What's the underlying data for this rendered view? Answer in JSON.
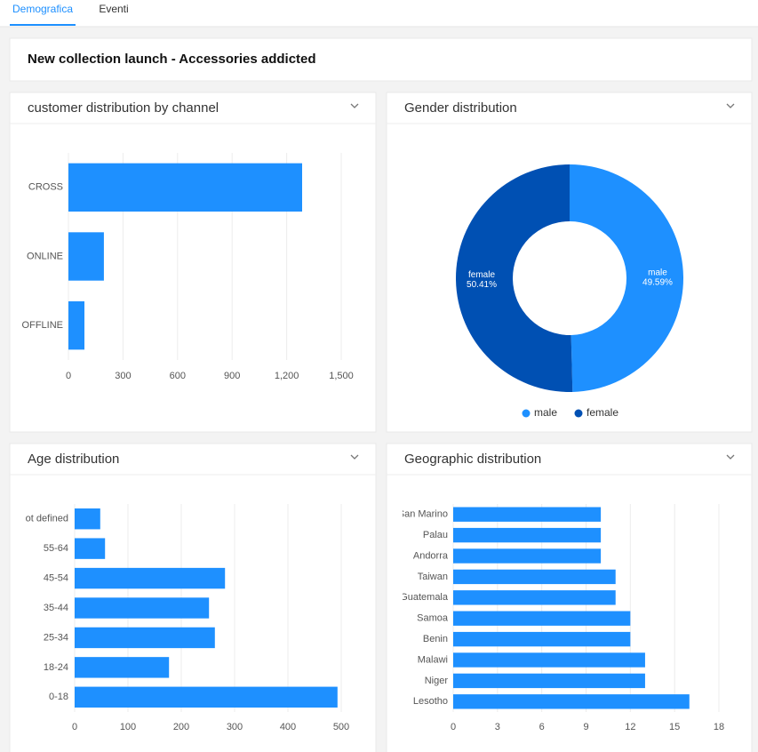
{
  "tabs": [
    "Demografica",
    "Eventi"
  ],
  "header": {
    "title": "New collection launch - Accessories addicted"
  },
  "chart_data": [
    {
      "type": "bar",
      "orientation": "horizontal",
      "title": "customer distribution by channel",
      "categories": [
        "CROSS",
        "ONLINE",
        "OFFLINE"
      ],
      "values": [
        1285,
        195,
        88
      ],
      "color": "#1e90ff",
      "xlim": [
        0,
        1500
      ],
      "xticks": [
        0,
        300,
        600,
        900,
        {
          "value": 1200,
          "label": "1,200"
        },
        {
          "value": 1500,
          "label": "1,500"
        }
      ],
      "grid": true
    },
    {
      "type": "pie",
      "title": "Gender distribution",
      "categories": [
        "male",
        "female"
      ],
      "values": [
        49.59,
        50.41
      ],
      "value_labels": [
        "49.59%",
        "50.41%"
      ],
      "colors": [
        "#1e90ff",
        "#0050b3"
      ],
      "legend": "bottom"
    },
    {
      "type": "bar",
      "orientation": "horizontal",
      "title": "Age distribution",
      "categories": [
        "Not defined",
        "55-64",
        "45-54",
        "35-44",
        "25-34",
        "18-24",
        "0-18"
      ],
      "values": [
        48,
        57,
        282,
        252,
        263,
        177,
        493
      ],
      "color": "#1e90ff",
      "xlim": [
        0,
        500
      ],
      "xticks": [
        0,
        100,
        200,
        300,
        400,
        500
      ],
      "grid": true
    },
    {
      "type": "bar",
      "orientation": "horizontal",
      "title": "Geographic distribution",
      "categories": [
        "San Marino",
        "Palau",
        "Andorra",
        "Taiwan",
        "Guatemala",
        "Samoa",
        "Benin",
        "Malawi",
        "Niger",
        "Lesotho"
      ],
      "values": [
        10,
        10,
        10,
        11,
        11,
        12,
        12,
        13,
        13,
        16
      ],
      "color": "#1e90ff",
      "xlim": [
        0,
        18
      ],
      "xticks": [
        0,
        3,
        6,
        9,
        12,
        15,
        18
      ],
      "grid": true
    }
  ]
}
